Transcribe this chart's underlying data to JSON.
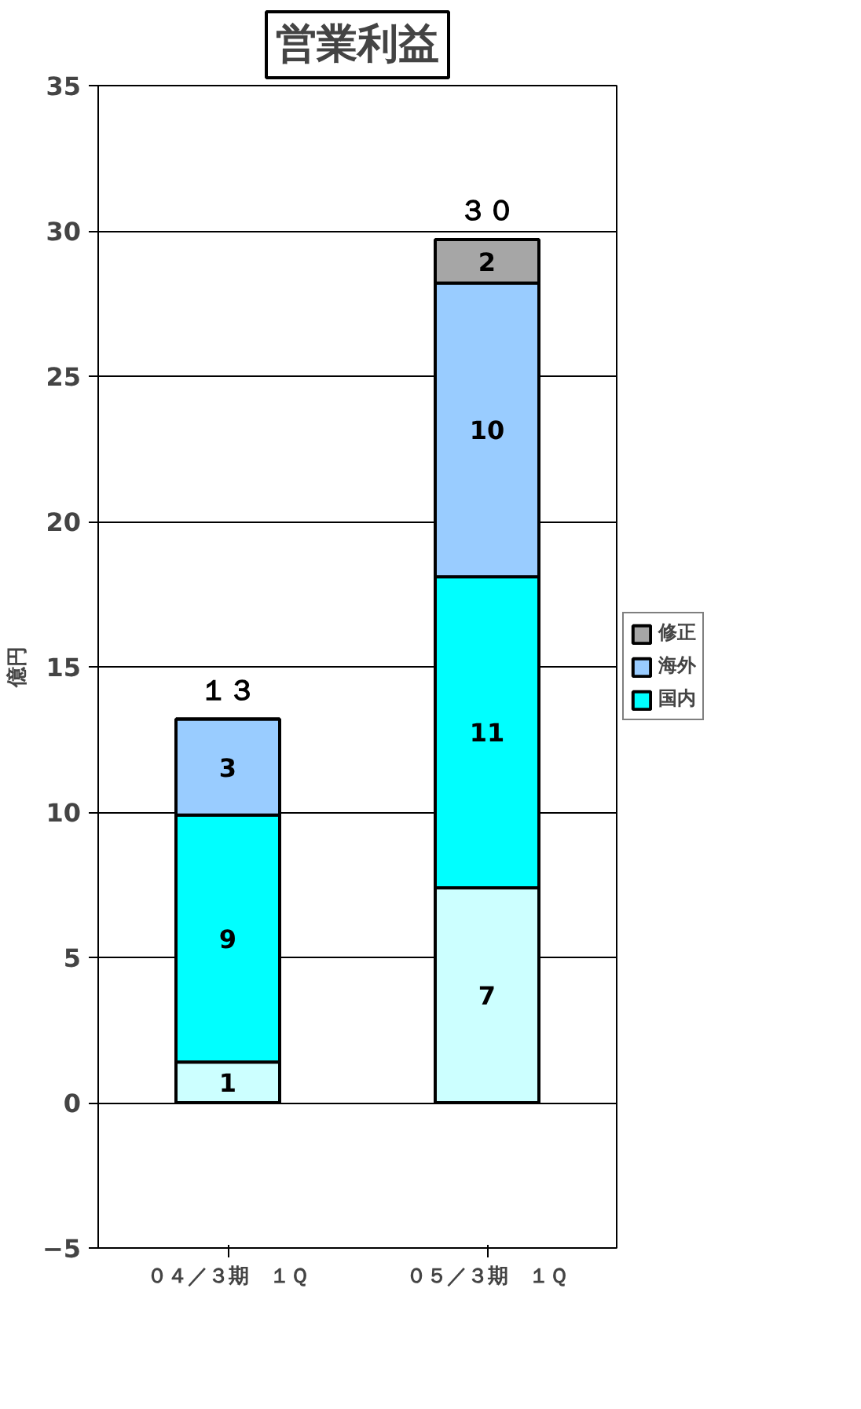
{
  "chart_data": {
    "type": "bar",
    "title": "営業利益",
    "ylabel": "億円",
    "stacked": true,
    "categories": [
      "０４／３期　１Ｑ",
      "０５／３期　１Ｑ"
    ],
    "series": [
      {
        "color": "#ccffff",
        "values": [
          1.4,
          7.4
        ],
        "value_labels": [
          "1",
          "7"
        ]
      },
      {
        "name": "国内",
        "color": "#00ffff",
        "values": [
          8.5,
          10.7
        ],
        "value_labels": [
          "9",
          "11"
        ]
      },
      {
        "name": "海外",
        "color": "#99ccff",
        "values": [
          3.3,
          10.1
        ],
        "value_labels": [
          "3",
          "10"
        ]
      },
      {
        "name": "修正",
        "color": "#a6a6a6",
        "values": [
          null,
          1.5
        ],
        "value_labels": [
          null,
          "2"
        ]
      }
    ],
    "totals": [
      "１３",
      "３０"
    ],
    "ylim": [
      -5,
      35
    ],
    "yticks": [
      -5,
      0,
      5,
      10,
      15,
      20,
      25,
      30,
      35
    ],
    "grid": "y",
    "legend": "right"
  }
}
